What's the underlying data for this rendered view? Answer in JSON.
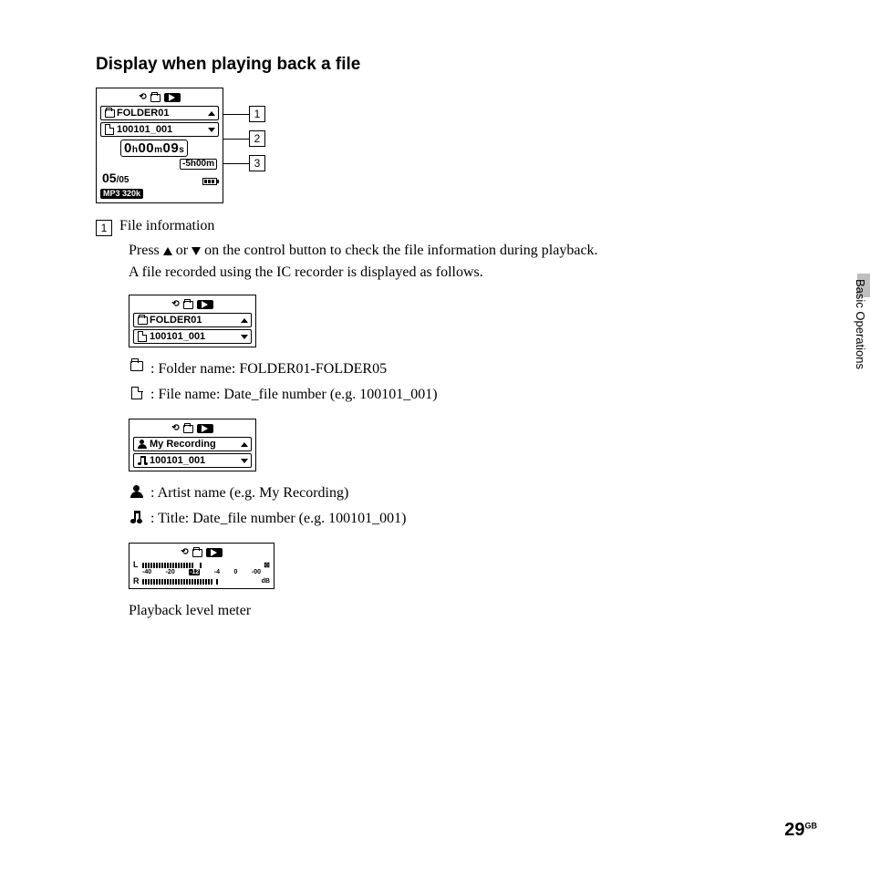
{
  "title": "Display when playing back a file",
  "main_lcd": {
    "folder": "FOLDER01",
    "file": "100101_001",
    "time_h": "0",
    "time_m": "00",
    "time_s": "09",
    "remain": "-5h00m",
    "counter_current": "05",
    "counter_total": "/05",
    "format": "MP3 320k"
  },
  "callouts": [
    "1",
    "2",
    "3"
  ],
  "item1": {
    "num": "1",
    "label": "File information",
    "para1_a": "Press ",
    "para1_b": " or ",
    "para1_c": " on the control button to check the file information during playback.",
    "para2": "A file recorded using the IC recorder is displayed as follows."
  },
  "mini_lcd1": {
    "line1": "FOLDER01",
    "line2": "100101_001"
  },
  "legend1": {
    "folder": ":  Folder name: FOLDER01-FOLDER05",
    "file": ":  File name: Date_file number (e.g. 100101_001)"
  },
  "mini_lcd2": {
    "line1": "My Recording",
    "line2": "100101_001"
  },
  "legend2": {
    "artist": ":  Artist name (e.g. My Recording)",
    "title": ":  Title: Date_file number (e.g. 100101_001)"
  },
  "meter_label": "Playback level meter",
  "meter_scale": {
    "a": "-40",
    "b": "-20",
    "c": "-12",
    "d": "-4",
    "e": "0",
    "f": "-00",
    "db": "dB"
  },
  "side_tab": "Basic Operations",
  "page_number": "29",
  "page_suffix": "GB"
}
